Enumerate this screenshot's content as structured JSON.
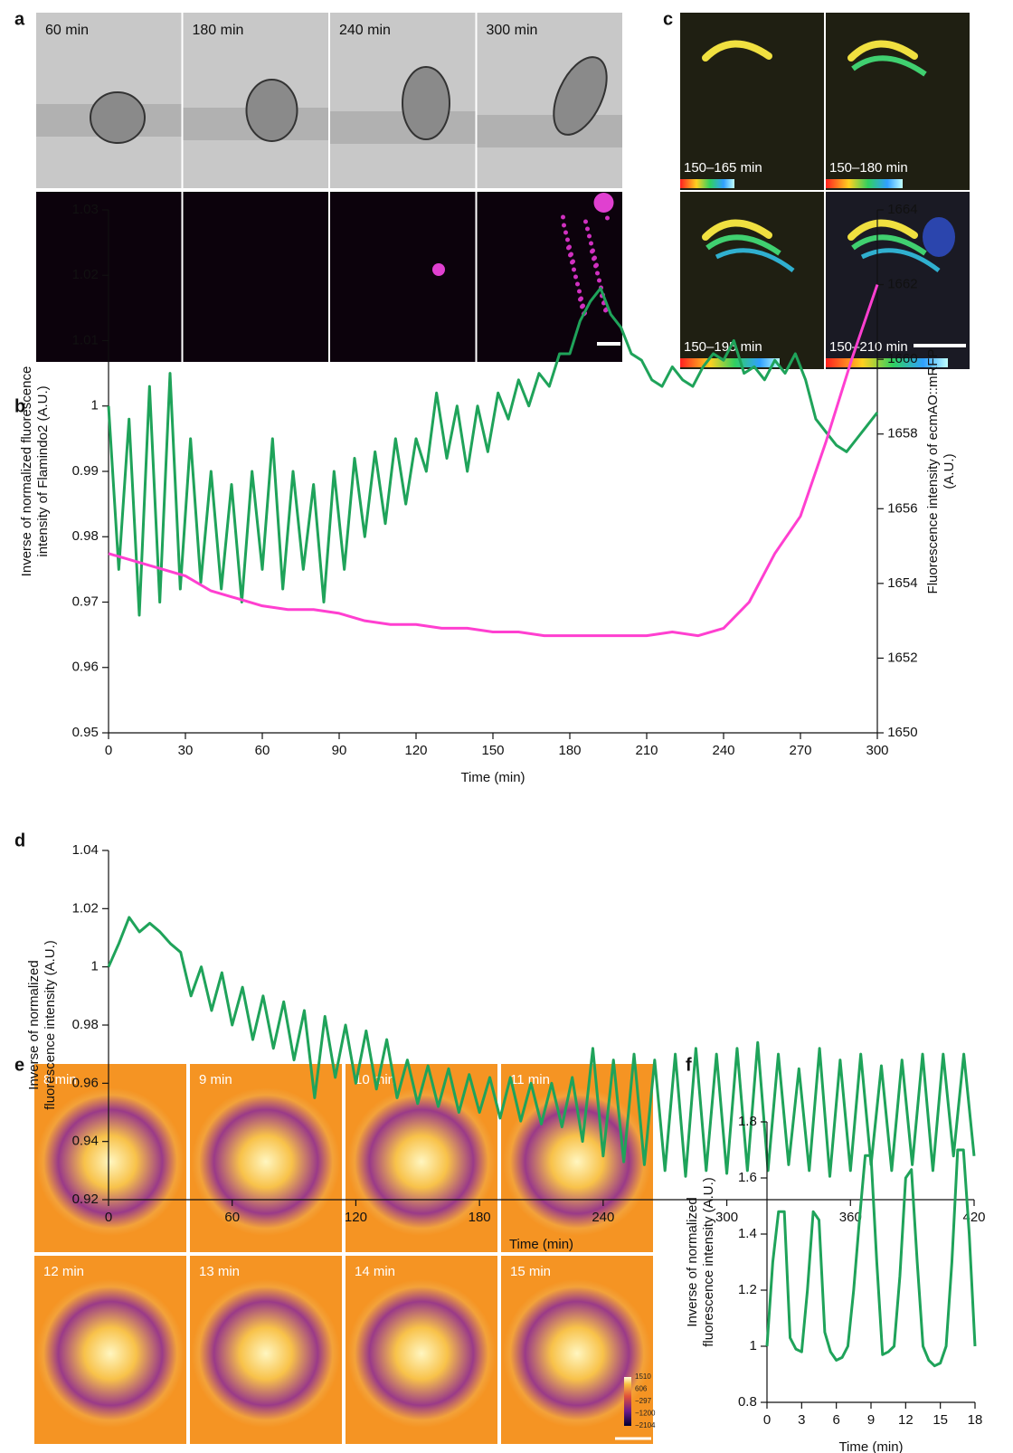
{
  "panel_labels": [
    "a",
    "b",
    "c",
    "d",
    "e",
    "f"
  ],
  "panel_a": {
    "times": [
      "60 min",
      "180 min",
      "240 min",
      "300 min"
    ]
  },
  "panel_c": {
    "windows": [
      "150–165 min",
      "150–180 min",
      "150–195 min",
      "150–210 min"
    ]
  },
  "panel_e": {
    "times": [
      "8 min",
      "9 min",
      "10 min",
      "11 min",
      "12 min",
      "13 min",
      "14 min",
      "15 min"
    ],
    "colorbar_lim": [
      -2104,
      1510
    ],
    "colorbar_ticks": [
      1510,
      606,
      {
        "value": -297,
        "label": "−297"
      },
      {
        "value": -1200,
        "label": "−1200"
      },
      {
        "value": -2104,
        "label": "−2104"
      }
    ]
  },
  "chart_data": [
    {
      "type": "line",
      "xlabel": "Time (min)",
      "ylabel": [
        "Inverse of normalized fluorescence",
        "intensity of Flamindo2 (A.U.)"
      ],
      "y2label": [
        "Fluorescence intensity of ecmAO::mRFP",
        "(A.U.)"
      ],
      "xlim": [
        0,
        300
      ],
      "xticks": [
        0,
        30,
        60,
        90,
        120,
        150,
        180,
        210,
        240,
        270,
        300
      ],
      "ylim": [
        0.95,
        1.03
      ],
      "yticks": [
        0.95,
        0.96,
        0.97,
        0.98,
        0.99,
        1,
        1.01,
        1.02,
        1.03
      ],
      "y2lim": [
        1650,
        1664
      ],
      "y2ticks": [
        1650,
        1652,
        1654,
        1656,
        1658,
        1660,
        1662,
        1664
      ],
      "series": [
        {
          "color": "#1fa35a",
          "x": [
            0,
            4,
            8,
            12,
            16,
            20,
            24,
            28,
            32,
            36,
            40,
            44,
            48,
            52,
            56,
            60,
            64,
            68,
            72,
            76,
            80,
            84,
            88,
            92,
            96,
            100,
            104,
            108,
            112,
            116,
            120,
            124,
            128,
            132,
            136,
            140,
            144,
            148,
            152,
            156,
            160,
            164,
            168,
            172,
            176,
            180,
            184,
            188,
            192,
            196,
            200,
            204,
            208,
            212,
            216,
            220,
            224,
            228,
            232,
            236,
            240,
            244,
            248,
            252,
            256,
            260,
            264,
            268,
            272,
            276,
            280,
            284,
            288,
            292,
            296,
            300
          ],
          "values": [
            1.0,
            0.975,
            0.998,
            0.968,
            1.003,
            0.97,
            1.005,
            0.972,
            0.995,
            0.973,
            0.99,
            0.972,
            0.988,
            0.97,
            0.99,
            0.975,
            0.995,
            0.972,
            0.99,
            0.975,
            0.988,
            0.97,
            0.99,
            0.975,
            0.992,
            0.98,
            0.993,
            0.982,
            0.995,
            0.985,
            0.995,
            0.99,
            1.002,
            0.992,
            1.0,
            0.99,
            1.0,
            0.993,
            1.002,
            0.998,
            1.004,
            1.0,
            1.005,
            1.003,
            1.008,
            1.008,
            1.013,
            1.016,
            1.018,
            1.014,
            1.012,
            1.008,
            1.007,
            1.004,
            1.003,
            1.006,
            1.004,
            1.003,
            1.006,
            1.008,
            1.007,
            1.01,
            1.005,
            1.006,
            1.004,
            1.007,
            1.005,
            1.008,
            1.004,
            0.998,
            0.996,
            0.994,
            0.993,
            0.995,
            0.997,
            0.999
          ]
        },
        {
          "color": "#ff3fd0",
          "axis": "y2",
          "x": [
            0,
            10,
            20,
            30,
            40,
            50,
            60,
            70,
            80,
            90,
            100,
            110,
            120,
            130,
            140,
            150,
            160,
            170,
            180,
            190,
            200,
            210,
            220,
            230,
            240,
            250,
            260,
            270,
            280,
            290,
            300
          ],
          "values": [
            1654.8,
            1654.6,
            1654.4,
            1654.2,
            1653.8,
            1653.6,
            1653.4,
            1653.3,
            1653.3,
            1653.2,
            1653.0,
            1652.9,
            1652.9,
            1652.8,
            1652.8,
            1652.7,
            1652.7,
            1652.6,
            1652.6,
            1652.6,
            1652.6,
            1652.6,
            1652.7,
            1652.6,
            1652.8,
            1653.5,
            1654.8,
            1655.8,
            1657.8,
            1660.0,
            1662.0
          ]
        }
      ]
    },
    {
      "type": "line",
      "xlabel": "Time (min)",
      "ylabel": [
        "Inverse of normalized",
        "fluorescence intensity (A.U.)"
      ],
      "xlim": [
        0,
        420
      ],
      "xticks": [
        0,
        60,
        120,
        180,
        240,
        300,
        360,
        420
      ],
      "ylim": [
        0.92,
        1.04
      ],
      "yticks": [
        0.92,
        0.94,
        0.96,
        0.98,
        1,
        1.02,
        1.04
      ],
      "series": [
        {
          "color": "#1fa35a",
          "x": [
            0,
            5,
            10,
            15,
            20,
            25,
            30,
            35,
            40,
            45,
            50,
            55,
            60,
            65,
            70,
            75,
            80,
            85,
            90,
            95,
            100,
            105,
            110,
            115,
            120,
            125,
            130,
            135,
            140,
            145,
            150,
            155,
            160,
            165,
            170,
            175,
            180,
            185,
            190,
            195,
            200,
            205,
            210,
            215,
            220,
            225,
            230,
            235,
            240,
            245,
            250,
            255,
            260,
            265,
            270,
            275,
            280,
            285,
            290,
            295,
            300,
            305,
            310,
            315,
            320,
            325,
            330,
            335,
            340,
            345,
            350,
            355,
            360,
            365,
            370,
            375,
            380,
            385,
            390,
            395,
            400,
            405,
            410,
            415,
            420
          ],
          "values": [
            1.0,
            1.008,
            1.017,
            1.012,
            1.015,
            1.012,
            1.008,
            1.005,
            0.99,
            1.0,
            0.985,
            0.998,
            0.98,
            0.993,
            0.975,
            0.99,
            0.972,
            0.988,
            0.968,
            0.985,
            0.955,
            0.983,
            0.962,
            0.98,
            0.96,
            0.978,
            0.958,
            0.975,
            0.955,
            0.968,
            0.953,
            0.966,
            0.952,
            0.965,
            0.95,
            0.963,
            0.95,
            0.962,
            0.948,
            0.962,
            0.947,
            0.96,
            0.946,
            0.96,
            0.945,
            0.962,
            0.94,
            0.972,
            0.935,
            0.968,
            0.933,
            0.97,
            0.932,
            0.968,
            0.93,
            0.97,
            0.928,
            0.972,
            0.93,
            0.97,
            0.929,
            0.972,
            0.93,
            0.974,
            0.93,
            0.97,
            0.932,
            0.965,
            0.93,
            0.972,
            0.928,
            0.968,
            0.93,
            0.97,
            0.932,
            0.966,
            0.93,
            0.968,
            0.932,
            0.97,
            0.93,
            0.97,
            0.935,
            0.97,
            0.935
          ]
        }
      ]
    },
    {
      "type": "line",
      "xlabel": "Time (min)",
      "ylabel": [
        "Inverse of normalized",
        "fluorescence intensity (A.U.)"
      ],
      "xlim": [
        0,
        18
      ],
      "xticks": [
        0,
        3,
        6,
        9,
        12,
        15,
        18
      ],
      "ylim": [
        0.8,
        1.8
      ],
      "yticks": [
        0.8,
        1,
        1.2,
        1.4,
        1.6,
        1.8
      ],
      "series": [
        {
          "color": "#1fa35a",
          "x": [
            0,
            0.5,
            1,
            1.5,
            2,
            2.5,
            3,
            3.5,
            4,
            4.5,
            5,
            5.5,
            6,
            6.5,
            7,
            7.5,
            8,
            8.5,
            9,
            9.5,
            10,
            10.5,
            11,
            11.5,
            12,
            12.5,
            13,
            13.5,
            14,
            14.5,
            15,
            15.5,
            16,
            16.5,
            17,
            17.5,
            18
          ],
          "values": [
            1.0,
            1.3,
            1.48,
            1.48,
            1.03,
            0.99,
            0.98,
            1.2,
            1.48,
            1.45,
            1.05,
            0.98,
            0.95,
            0.96,
            1.0,
            1.2,
            1.45,
            1.68,
            1.68,
            1.3,
            0.97,
            0.98,
            1.0,
            1.25,
            1.6,
            1.63,
            1.3,
            1.0,
            0.95,
            0.93,
            0.94,
            1.0,
            1.3,
            1.7,
            1.7,
            1.4,
            1.0
          ]
        }
      ]
    }
  ]
}
